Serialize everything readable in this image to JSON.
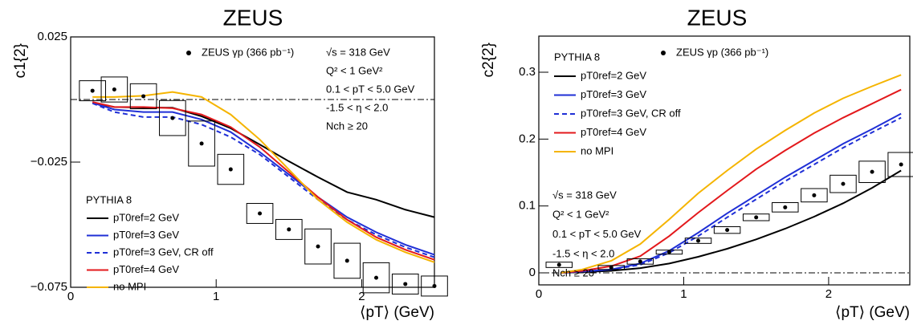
{
  "chart_data": [
    {
      "type": "line",
      "title": "ZEUS",
      "xlabel": "⟨pT⟩ (GeV)",
      "ylabel": "c1{2}",
      "xlim": [
        0,
        2.5
      ],
      "ylim": [
        -0.075,
        0.025
      ],
      "xticks": [
        0,
        1,
        2
      ],
      "yticks": [
        0.025,
        {
          "value": -0.025,
          "label": "−0.025"
        },
        {
          "value": -0.075,
          "label": "−0.075"
        }
      ],
      "data": {
        "name": "ZEUS γp (366 pb⁻¹)",
        "x": [
          0.15,
          0.3,
          0.5,
          0.7,
          0.9,
          1.1,
          1.3,
          1.5,
          1.7,
          1.9,
          2.1,
          2.3,
          2.5
        ],
        "values": [
          0.0035,
          0.004,
          0.0013,
          -0.0074,
          -0.0176,
          -0.0279,
          -0.0455,
          -0.0519,
          -0.0587,
          -0.0644,
          -0.0712,
          -0.0737,
          -0.0745
        ],
        "sys_errors": [
          0.004,
          0.005,
          0.005,
          0.007,
          0.009,
          0.006,
          0.004,
          0.004,
          0.007,
          0.007,
          0.006,
          0.004,
          0.004
        ]
      },
      "legend_title": "PYTHIA 8",
      "x": [
        0.15,
        0.3,
        0.5,
        0.7,
        0.9,
        1.1,
        1.3,
        1.5,
        1.7,
        1.9,
        2.1,
        2.3,
        2.5
      ],
      "series": [
        {
          "name": "pT0ref=2 GeV",
          "color": "#000000",
          "style": "solid",
          "values": [
            -0.0013,
            -0.003,
            -0.0032,
            -0.0033,
            -0.0067,
            -0.0115,
            -0.018,
            -0.0247,
            -0.031,
            -0.037,
            -0.04,
            -0.044,
            -0.047
          ]
        },
        {
          "name": "pT0ref=3 GeV",
          "color": "#1f2fd6",
          "style": "solid",
          "values": [
            -0.0013,
            -0.004,
            -0.005,
            -0.005,
            -0.008,
            -0.013,
            -0.021,
            -0.03,
            -0.039,
            -0.047,
            -0.053,
            -0.058,
            -0.062
          ]
        },
        {
          "name": "pT0ref=3 GeV, CR off",
          "color": "#1f2fd6",
          "style": "dashed",
          "values": [
            -0.0015,
            -0.005,
            -0.007,
            -0.007,
            -0.01,
            -0.015,
            -0.022,
            -0.031,
            -0.04,
            -0.048,
            -0.054,
            -0.059,
            -0.063
          ]
        },
        {
          "name": "pT0ref=4 GeV",
          "color": "#e3191c",
          "style": "solid",
          "values": [
            -0.001,
            -0.003,
            -0.003,
            -0.0035,
            -0.006,
            -0.011,
            -0.019,
            -0.029,
            -0.039,
            -0.048,
            -0.055,
            -0.06,
            -0.064
          ]
        },
        {
          "name": "no MPI",
          "color": "#f5b400",
          "style": "solid",
          "values": [
            0.001,
            0.001,
            0.0015,
            0.003,
            0.001,
            -0.006,
            -0.016,
            -0.028,
            -0.04,
            -0.049,
            -0.056,
            -0.061,
            -0.065
          ]
        }
      ],
      "annotations": [
        "√s = 318 GeV",
        "Q² < 1 GeV²",
        "0.1 < pT < 5.0 GeV",
        "-1.5 < η < 2.0",
        "Nch ≥ 20"
      ]
    },
    {
      "type": "line",
      "title": "ZEUS",
      "xlabel": "⟨pT⟩ (GeV)",
      "ylabel": "c2{2}",
      "xlim": [
        0,
        2.56
      ],
      "ylim": [
        -0.018,
        0.354
      ],
      "xticks": [
        0,
        1,
        2
      ],
      "yticks": [
        0,
        0.1,
        0.2,
        0.3
      ],
      "data": {
        "name": "ZEUS γp (366 pb⁻¹)",
        "x": [
          0.14,
          0.5,
          0.7,
          0.9,
          1.1,
          1.3,
          1.5,
          1.7,
          1.9,
          2.1,
          2.3,
          2.5
        ],
        "values": [
          0.012,
          0.008,
          0.017,
          0.031,
          0.048,
          0.064,
          0.083,
          0.098,
          0.116,
          0.133,
          0.151,
          0.162
        ],
        "sys_errors": [
          0.004,
          0.003,
          0.004,
          0.003,
          0.004,
          0.005,
          0.005,
          0.007,
          0.01,
          0.013,
          0.016,
          0.018
        ]
      },
      "legend_title": "PYTHIA 8",
      "x": [
        0.15,
        0.3,
        0.5,
        0.7,
        0.9,
        1.1,
        1.3,
        1.5,
        1.7,
        1.9,
        2.1,
        2.3,
        2.5
      ],
      "series": [
        {
          "name": "pT0ref=2 GeV",
          "color": "#000000",
          "style": "solid",
          "values": [
            0,
            0.001,
            0.003,
            0.007,
            0.014,
            0.024,
            0.036,
            0.05,
            0.066,
            0.084,
            0.104,
            0.127,
            0.153
          ]
        },
        {
          "name": "pT0ref=3 GeV",
          "color": "#1f2fd6",
          "style": "solid",
          "values": [
            0,
            0.002,
            0.005,
            0.014,
            0.033,
            0.06,
            0.089,
            0.116,
            0.143,
            0.168,
            0.193,
            0.215,
            0.238
          ]
        },
        {
          "name": "pT0ref=3 GeV, CR off",
          "color": "#1f2fd6",
          "style": "dashed",
          "values": [
            0,
            0.002,
            0.005,
            0.012,
            0.03,
            0.055,
            0.083,
            0.11,
            0.137,
            0.162,
            0.187,
            0.21,
            0.232
          ]
        },
        {
          "name": "pT0ref=4 GeV",
          "color": "#e3191c",
          "style": "solid",
          "values": [
            0,
            0.003,
            0.01,
            0.025,
            0.055,
            0.09,
            0.123,
            0.155,
            0.183,
            0.209,
            0.232,
            0.253,
            0.274
          ]
        },
        {
          "name": "no MPI",
          "color": "#f5b400",
          "style": "solid",
          "values": [
            0,
            0.005,
            0.018,
            0.043,
            0.08,
            0.119,
            0.153,
            0.185,
            0.213,
            0.239,
            0.261,
            0.279,
            0.296
          ]
        }
      ],
      "annotations": [
        "√s = 318 GeV",
        "Q² < 1 GeV²",
        "0.1 < pT < 5.0 GeV",
        "-1.5 < η < 2.0",
        "Nch ≥ 20"
      ]
    }
  ]
}
